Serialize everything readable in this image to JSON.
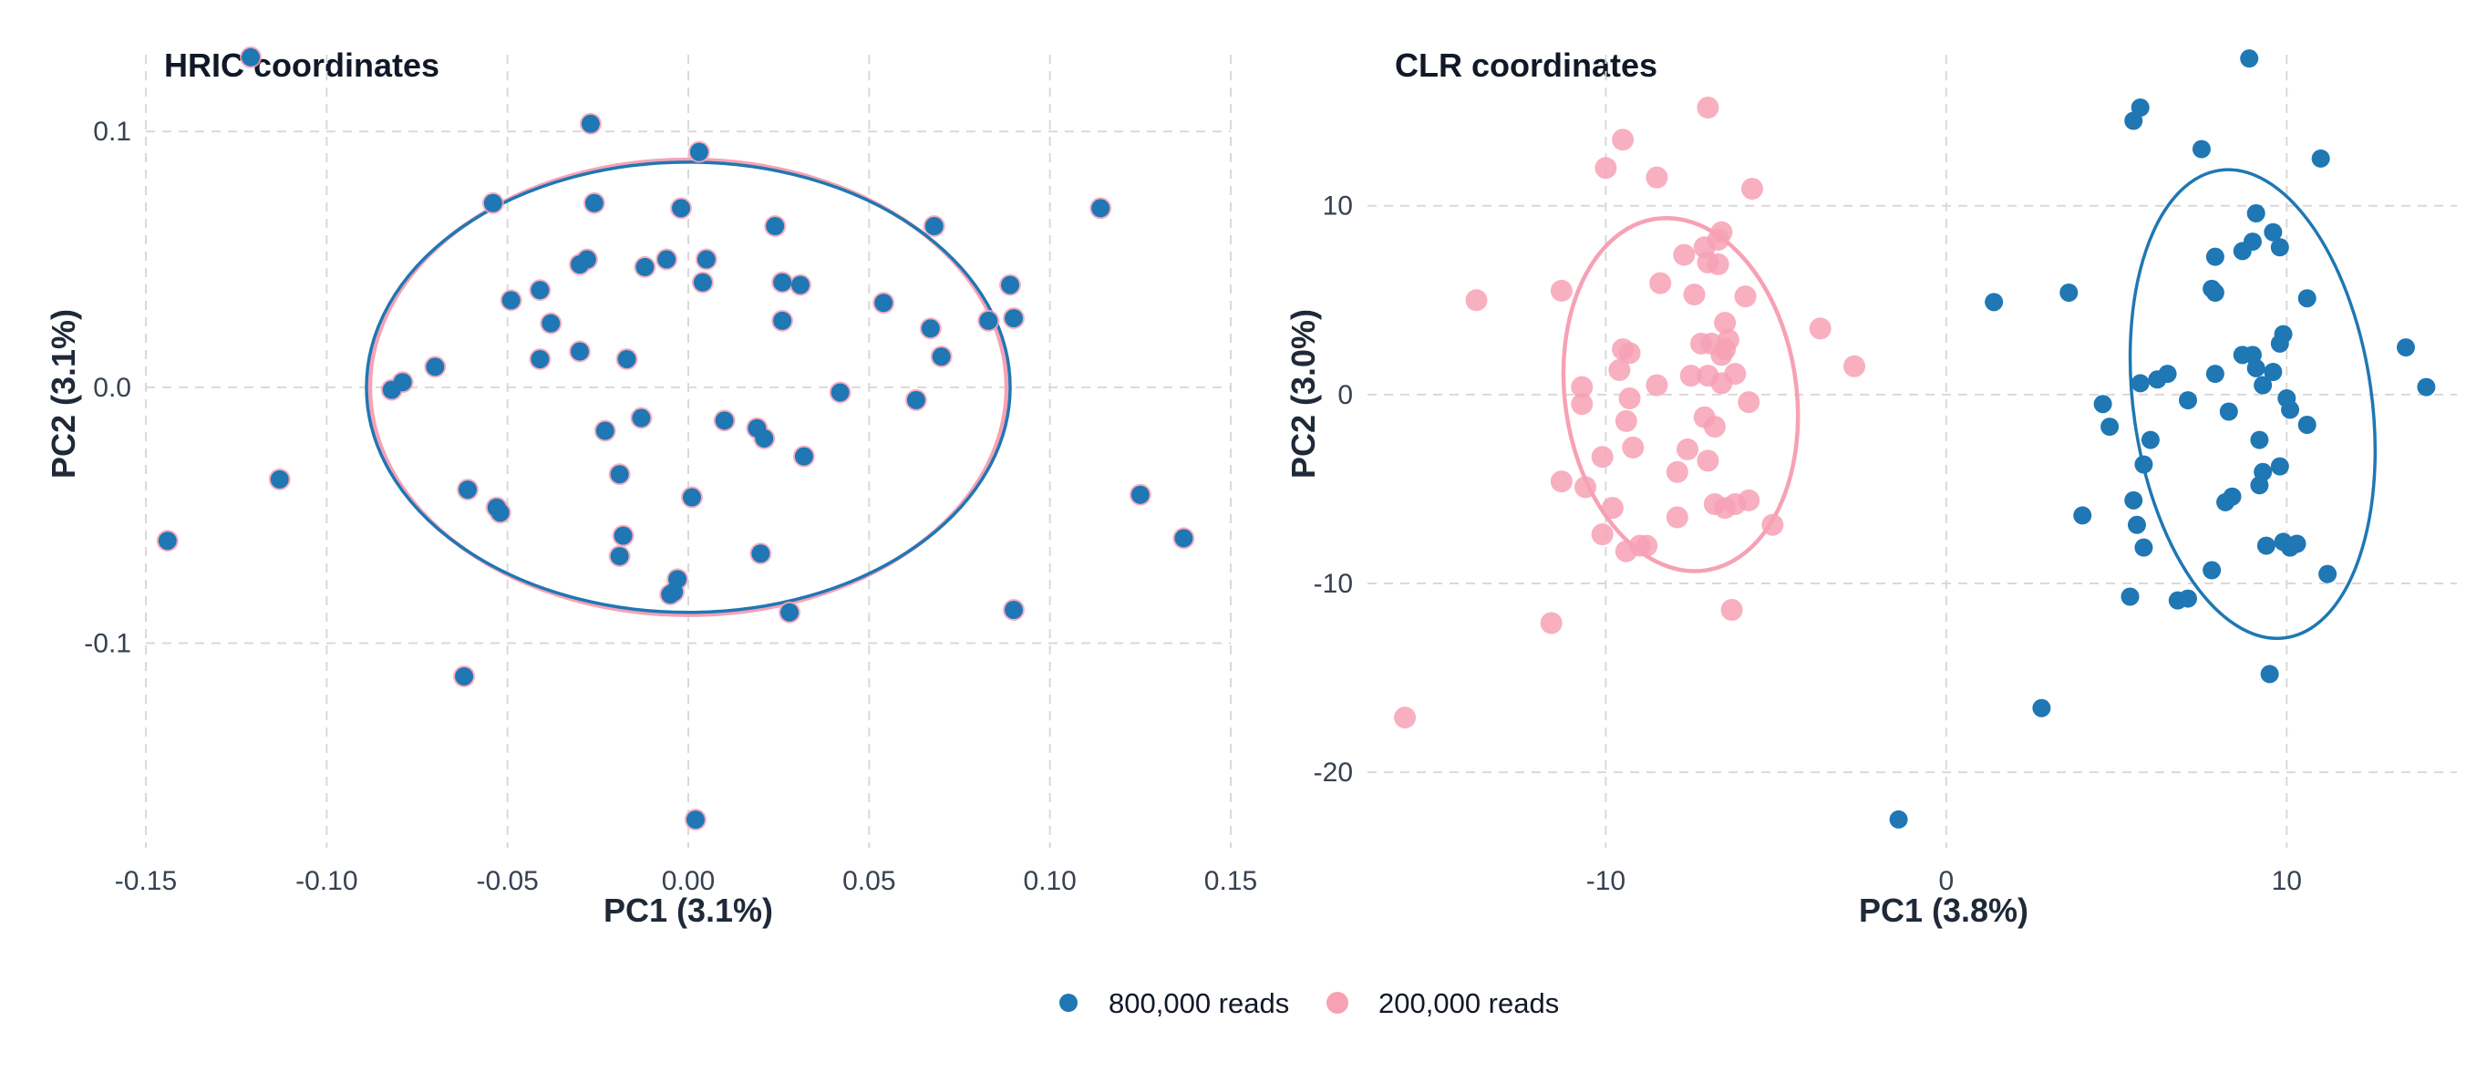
{
  "legend": {
    "placement": "bottom",
    "items": [
      {
        "label": "800,000 reads",
        "color": "#1f77b4"
      },
      {
        "label": "200,000 reads",
        "color": "#f7a1b5"
      }
    ]
  },
  "chart_data": [
    {
      "type": "scatter",
      "title": "HRIC coordinates",
      "xlabel": "PC1 (3.1%)",
      "ylabel": "PC2 (3.1%)",
      "xlim": [
        -0.15,
        0.15
      ],
      "ylim": [
        -0.18,
        0.13
      ],
      "xticks": [
        -0.15,
        -0.1,
        -0.05,
        0.0,
        0.05,
        0.1,
        0.15
      ],
      "xtick_labels": [
        "-0.15",
        "-0.10",
        "-0.05",
        "0.00",
        "0.05",
        "0.10",
        "0.15"
      ],
      "yticks": [
        -0.1,
        0.0,
        0.1
      ],
      "ytick_labels": [
        "-0.1",
        "0.0",
        "0.1"
      ],
      "grid": true,
      "series": [
        {
          "name": "800,000 reads",
          "color": "#1f77b4",
          "ellipse": {
            "cx": 0.0,
            "cy": 0.0,
            "rx": 0.089,
            "ry": 0.088,
            "angle": 0
          },
          "points": [
            [
              -0.121,
              0.129
            ],
            [
              -0.027,
              0.103
            ],
            [
              0.003,
              0.092
            ],
            [
              -0.054,
              0.072
            ],
            [
              -0.026,
              0.072
            ],
            [
              -0.002,
              0.07
            ],
            [
              0.114,
              0.07
            ],
            [
              0.024,
              0.063
            ],
            [
              0.068,
              0.063
            ],
            [
              -0.028,
              0.05
            ],
            [
              -0.006,
              0.05
            ],
            [
              0.005,
              0.05
            ],
            [
              -0.03,
              0.048
            ],
            [
              -0.012,
              0.047
            ],
            [
              0.004,
              0.041
            ],
            [
              0.026,
              0.041
            ],
            [
              0.031,
              0.04
            ],
            [
              0.089,
              0.04
            ],
            [
              -0.041,
              0.038
            ],
            [
              -0.049,
              0.034
            ],
            [
              0.054,
              0.033
            ],
            [
              -0.038,
              0.025
            ],
            [
              0.026,
              0.026
            ],
            [
              0.067,
              0.023
            ],
            [
              0.09,
              0.027
            ],
            [
              0.083,
              0.026
            ],
            [
              -0.03,
              0.014
            ],
            [
              -0.041,
              0.011
            ],
            [
              -0.017,
              0.011
            ],
            [
              0.07,
              0.012
            ],
            [
              -0.07,
              0.008
            ],
            [
              -0.079,
              0.002
            ],
            [
              -0.082,
              -0.001
            ],
            [
              0.042,
              -0.002
            ],
            [
              0.063,
              -0.005
            ],
            [
              -0.013,
              -0.012
            ],
            [
              0.01,
              -0.013
            ],
            [
              0.019,
              -0.016
            ],
            [
              -0.023,
              -0.017
            ],
            [
              0.021,
              -0.02
            ],
            [
              0.032,
              -0.027
            ],
            [
              -0.113,
              -0.036
            ],
            [
              -0.019,
              -0.034
            ],
            [
              -0.061,
              -0.04
            ],
            [
              0.001,
              -0.043
            ],
            [
              0.125,
              -0.042
            ],
            [
              -0.053,
              -0.047
            ],
            [
              -0.052,
              -0.049
            ],
            [
              -0.018,
              -0.058
            ],
            [
              -0.144,
              -0.06
            ],
            [
              0.137,
              -0.059
            ],
            [
              0.02,
              -0.065
            ],
            [
              -0.019,
              -0.066
            ],
            [
              -0.003,
              -0.075
            ],
            [
              -0.004,
              -0.08
            ],
            [
              -0.005,
              -0.081
            ],
            [
              0.028,
              -0.088
            ],
            [
              0.09,
              -0.087
            ],
            [
              -0.062,
              -0.113
            ],
            [
              0.002,
              -0.169
            ]
          ]
        },
        {
          "name": "200,000 reads",
          "color": "#f7a1b5",
          "ellipse": {
            "cx": 0.0,
            "cy": 0.0,
            "rx": 0.088,
            "ry": 0.089,
            "angle": 0
          },
          "points": [
            [
              -0.121,
              0.129
            ],
            [
              -0.027,
              0.103
            ],
            [
              0.003,
              0.092
            ],
            [
              -0.054,
              0.072
            ],
            [
              -0.026,
              0.072
            ],
            [
              -0.002,
              0.07
            ],
            [
              0.114,
              0.07
            ],
            [
              0.024,
              0.063
            ],
            [
              0.068,
              0.063
            ],
            [
              -0.028,
              0.05
            ],
            [
              -0.006,
              0.05
            ],
            [
              0.005,
              0.05
            ],
            [
              -0.03,
              0.048
            ],
            [
              -0.012,
              0.047
            ],
            [
              0.004,
              0.041
            ],
            [
              0.026,
              0.041
            ],
            [
              0.031,
              0.04
            ],
            [
              0.089,
              0.04
            ],
            [
              -0.041,
              0.038
            ],
            [
              -0.049,
              0.034
            ],
            [
              0.054,
              0.033
            ],
            [
              -0.038,
              0.025
            ],
            [
              0.026,
              0.026
            ],
            [
              0.067,
              0.023
            ],
            [
              0.09,
              0.027
            ],
            [
              0.083,
              0.026
            ],
            [
              -0.03,
              0.014
            ],
            [
              -0.041,
              0.011
            ],
            [
              -0.017,
              0.011
            ],
            [
              0.07,
              0.012
            ],
            [
              -0.07,
              0.008
            ],
            [
              -0.079,
              0.002
            ],
            [
              -0.082,
              -0.001
            ],
            [
              0.042,
              -0.002
            ],
            [
              0.063,
              -0.005
            ],
            [
              -0.013,
              -0.012
            ],
            [
              0.01,
              -0.013
            ],
            [
              0.019,
              -0.016
            ],
            [
              -0.023,
              -0.017
            ],
            [
              0.021,
              -0.02
            ],
            [
              0.032,
              -0.027
            ],
            [
              -0.113,
              -0.036
            ],
            [
              -0.019,
              -0.034
            ],
            [
              -0.061,
              -0.04
            ],
            [
              0.001,
              -0.043
            ],
            [
              0.125,
              -0.042
            ],
            [
              -0.053,
              -0.047
            ],
            [
              -0.052,
              -0.049
            ],
            [
              -0.018,
              -0.058
            ],
            [
              -0.144,
              -0.06
            ],
            [
              0.137,
              -0.059
            ],
            [
              0.02,
              -0.065
            ],
            [
              -0.019,
              -0.066
            ],
            [
              -0.003,
              -0.075
            ],
            [
              -0.004,
              -0.08
            ],
            [
              -0.005,
              -0.081
            ],
            [
              0.028,
              -0.088
            ],
            [
              0.09,
              -0.087
            ],
            [
              -0.062,
              -0.113
            ],
            [
              0.002,
              -0.169
            ]
          ]
        }
      ]
    },
    {
      "type": "scatter",
      "title": "CLR coordinates",
      "xlabel": "PC1 (3.8%)",
      "ylabel": "PC2 (3.0%)",
      "xlim": [
        -17,
        15
      ],
      "ylim": [
        -24,
        18
      ],
      "xticks": [
        -10,
        0,
        10
      ],
      "xtick_labels": [
        "-10",
        "0",
        "10"
      ],
      "yticks": [
        -20,
        -10,
        0,
        10
      ],
      "ytick_labels": [
        "-20",
        "-10",
        "0",
        "10"
      ],
      "grid": true,
      "series": [
        {
          "name": "800,000 reads",
          "color": "#1f77b4",
          "ellipse": {
            "cx": 9.0,
            "cy": -0.5,
            "rx": 3.5,
            "ry": 12.5,
            "angle": 8
          },
          "points": [
            [
              8.9,
              17.8
            ],
            [
              5.7,
              15.2
            ],
            [
              5.5,
              14.5
            ],
            [
              7.5,
              13.0
            ],
            [
              11.0,
              12.5
            ],
            [
              9.1,
              9.6
            ],
            [
              9.6,
              8.6
            ],
            [
              9.0,
              8.1
            ],
            [
              8.7,
              7.6
            ],
            [
              9.8,
              7.8
            ],
            [
              7.9,
              7.3
            ],
            [
              7.8,
              5.6
            ],
            [
              7.9,
              5.4
            ],
            [
              3.6,
              5.4
            ],
            [
              1.4,
              4.9
            ],
            [
              10.6,
              5.1
            ],
            [
              9.9,
              3.2
            ],
            [
              9.8,
              2.7
            ],
            [
              13.5,
              2.5
            ],
            [
              8.7,
              2.1
            ],
            [
              9.0,
              2.1
            ],
            [
              9.1,
              1.4
            ],
            [
              9.6,
              1.2
            ],
            [
              7.9,
              1.1
            ],
            [
              6.5,
              1.1
            ],
            [
              6.2,
              0.8
            ],
            [
              5.7,
              0.6
            ],
            [
              9.3,
              0.5
            ],
            [
              14.1,
              0.4
            ],
            [
              10.0,
              -0.2
            ],
            [
              10.1,
              -0.8
            ],
            [
              4.6,
              -0.5
            ],
            [
              7.1,
              -0.3
            ],
            [
              8.3,
              -0.9
            ],
            [
              10.6,
              -1.6
            ],
            [
              4.8,
              -1.7
            ],
            [
              6.0,
              -2.4
            ],
            [
              9.2,
              -2.4
            ],
            [
              5.8,
              -3.7
            ],
            [
              9.8,
              -3.8
            ],
            [
              9.3,
              -4.1
            ],
            [
              9.2,
              -4.8
            ],
            [
              8.4,
              -5.4
            ],
            [
              8.2,
              -5.7
            ],
            [
              5.5,
              -5.6
            ],
            [
              4.0,
              -6.4
            ],
            [
              5.6,
              -6.9
            ],
            [
              5.8,
              -8.1
            ],
            [
              9.4,
              -8.0
            ],
            [
              9.9,
              -7.8
            ],
            [
              10.1,
              -8.1
            ],
            [
              10.3,
              -7.9
            ],
            [
              7.8,
              -9.3
            ],
            [
              11.2,
              -9.5
            ],
            [
              5.4,
              -10.7
            ],
            [
              6.8,
              -10.9
            ],
            [
              7.1,
              -10.8
            ],
            [
              9.5,
              -14.8
            ],
            [
              2.8,
              -16.6
            ],
            [
              -1.4,
              -22.5
            ]
          ]
        },
        {
          "name": "200,000 reads",
          "color": "#f7a1b5",
          "ellipse": {
            "cx": -7.8,
            "cy": 0.0,
            "rx": 3.4,
            "ry": 9.4,
            "angle": 8
          },
          "points": [
            [
              -7.0,
              15.2
            ],
            [
              -9.5,
              13.5
            ],
            [
              -10.0,
              12.0
            ],
            [
              -8.5,
              11.5
            ],
            [
              -5.7,
              10.9
            ],
            [
              -6.6,
              8.6
            ],
            [
              -6.7,
              8.2
            ],
            [
              -7.1,
              7.8
            ],
            [
              -7.7,
              7.4
            ],
            [
              -7.0,
              7.0
            ],
            [
              -6.7,
              6.9
            ],
            [
              -8.4,
              5.9
            ],
            [
              -11.3,
              5.5
            ],
            [
              -7.4,
              5.3
            ],
            [
              -5.9,
              5.2
            ],
            [
              -13.8,
              5.0
            ],
            [
              -6.5,
              3.8
            ],
            [
              -3.7,
              3.5
            ],
            [
              -6.4,
              2.9
            ],
            [
              -6.5,
              2.4
            ],
            [
              -6.9,
              2.7
            ],
            [
              -7.2,
              2.7
            ],
            [
              -9.5,
              2.4
            ],
            [
              -9.3,
              2.2
            ],
            [
              -6.6,
              2.1
            ],
            [
              -2.7,
              1.5
            ],
            [
              -9.6,
              1.3
            ],
            [
              -7.5,
              1.0
            ],
            [
              -7.0,
              1.0
            ],
            [
              -6.2,
              1.1
            ],
            [
              -6.6,
              0.6
            ],
            [
              -8.5,
              0.5
            ],
            [
              -10.7,
              0.4
            ],
            [
              -9.3,
              -0.2
            ],
            [
              -5.8,
              -0.4
            ],
            [
              -10.7,
              -0.5
            ],
            [
              -7.1,
              -1.2
            ],
            [
              -9.4,
              -1.4
            ],
            [
              -6.8,
              -1.7
            ],
            [
              -7.6,
              -2.9
            ],
            [
              -9.2,
              -2.8
            ],
            [
              -10.1,
              -3.3
            ],
            [
              -7.0,
              -3.5
            ],
            [
              -7.9,
              -4.1
            ],
            [
              -11.3,
              -4.6
            ],
            [
              -10.6,
              -4.9
            ],
            [
              -5.8,
              -5.6
            ],
            [
              -6.2,
              -5.8
            ],
            [
              -6.8,
              -5.8
            ],
            [
              -6.5,
              -6.0
            ],
            [
              -9.8,
              -6.0
            ],
            [
              -7.9,
              -6.5
            ],
            [
              -5.1,
              -6.9
            ],
            [
              -10.1,
              -7.4
            ],
            [
              -9.0,
              -8.0
            ],
            [
              -9.4,
              -8.3
            ],
            [
              -11.6,
              -12.1
            ],
            [
              -6.3,
              -11.4
            ],
            [
              -15.9,
              -17.1
            ],
            [
              -8.8,
              -8.0
            ]
          ]
        }
      ]
    }
  ]
}
